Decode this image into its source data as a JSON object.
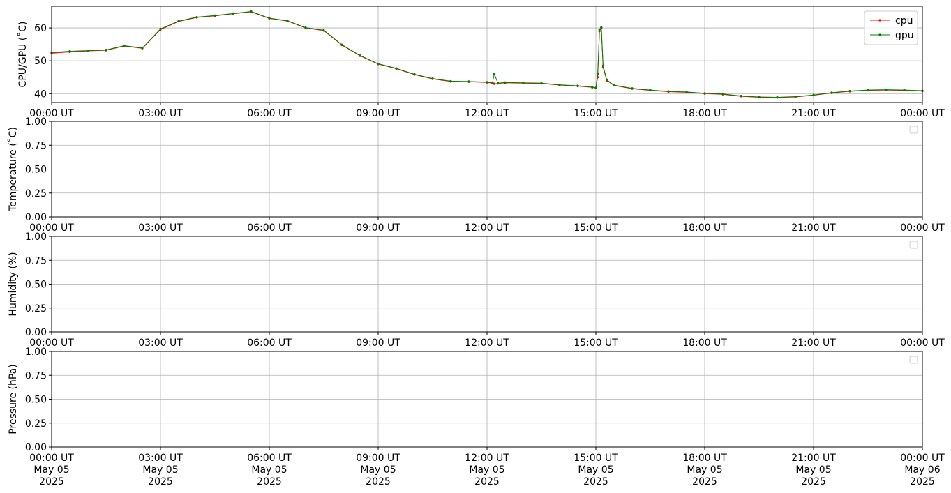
{
  "chart_data": [
    {
      "type": "line",
      "ylabel": "CPU/GPU (˚C)",
      "xlim": [
        "2025-05-05T00:00:00Z",
        "2025-05-06T00:00:00Z"
      ],
      "ylim": [
        37.3,
        66.6
      ],
      "yticks": [
        "40",
        "50",
        "60"
      ],
      "xtick_labels": [
        "00:00 UT",
        "03:00 UT",
        "06:00 UT",
        "09:00 UT",
        "12:00 UT",
        "15:00 UT",
        "18:00 UT",
        "21:00 UT",
        "00:00 UT"
      ],
      "grid": true,
      "legend_position": "top-right",
      "colors": {
        "cpu": "#ff0000",
        "gpu": "#008000"
      },
      "series": [
        {
          "name": "cpu",
          "x": [
            0,
            0.5,
            1.0,
            1.5,
            2.0,
            2.5,
            3.0,
            3.5,
            4.0,
            4.5,
            5.0,
            5.5,
            6.0,
            6.5,
            7.0,
            7.5,
            8.0,
            8.5,
            9.0,
            9.5,
            10.0,
            10.5,
            11.0,
            11.5,
            12.0,
            12.15,
            12.2,
            12.3,
            12.5,
            13.0,
            13.5,
            14.0,
            14.5,
            14.9,
            15.0,
            15.05,
            15.1,
            15.15,
            15.2,
            15.3,
            15.5,
            16.0,
            16.5,
            17.0,
            17.5,
            18.0,
            18.5,
            19.0,
            19.5,
            20.0,
            20.5,
            21.0,
            21.5,
            22.0,
            22.5,
            23.0,
            23.5,
            24.0
          ],
          "y": [
            52.3,
            52.7,
            53.0,
            53.2,
            54.5,
            53.8,
            59.5,
            62.0,
            63.2,
            63.7,
            64.3,
            64.9,
            62.9,
            62.1,
            60.0,
            59.2,
            54.8,
            51.5,
            49.0,
            47.6,
            45.8,
            44.5,
            43.7,
            43.6,
            43.4,
            43.2,
            43.0,
            43.1,
            43.3,
            43.2,
            43.1,
            42.6,
            42.3,
            41.9,
            41.7,
            45.0,
            59.0,
            60.0,
            48.0,
            44.0,
            42.5,
            41.5,
            41.0,
            40.6,
            40.4,
            40.0,
            39.8,
            39.2,
            38.9,
            38.8,
            39.0,
            39.5,
            40.2,
            40.7,
            41.0,
            41.1,
            41.0,
            40.8
          ]
        },
        {
          "name": "gpu",
          "x": [
            0,
            0.5,
            1.0,
            1.5,
            2.0,
            2.5,
            3.0,
            3.5,
            4.0,
            4.5,
            5.0,
            5.5,
            6.0,
            6.5,
            7.0,
            7.5,
            8.0,
            8.5,
            9.0,
            9.5,
            10.0,
            10.5,
            11.0,
            11.5,
            12.0,
            12.15,
            12.2,
            12.3,
            12.5,
            13.0,
            13.5,
            14.0,
            14.5,
            14.9,
            15.0,
            15.05,
            15.1,
            15.15,
            15.2,
            15.3,
            15.5,
            16.0,
            16.5,
            17.0,
            17.5,
            18.0,
            18.5,
            19.0,
            19.5,
            20.0,
            20.5,
            21.0,
            21.5,
            22.0,
            22.5,
            23.0,
            23.5,
            24.0
          ],
          "y": [
            52.5,
            52.9,
            53.1,
            53.3,
            54.6,
            53.9,
            59.7,
            62.1,
            63.3,
            63.8,
            64.4,
            65.0,
            63.0,
            62.2,
            60.1,
            59.3,
            54.9,
            51.6,
            49.1,
            47.7,
            45.9,
            44.6,
            43.8,
            43.7,
            43.5,
            43.3,
            46.0,
            43.2,
            43.4,
            43.3,
            43.2,
            42.7,
            42.4,
            42.0,
            41.8,
            46.0,
            59.5,
            60.2,
            48.5,
            44.2,
            42.6,
            41.6,
            41.1,
            40.7,
            40.5,
            40.1,
            39.9,
            39.3,
            39.0,
            38.9,
            39.1,
            39.6,
            40.3,
            40.8,
            41.1,
            41.2,
            41.1,
            40.9
          ]
        }
      ]
    },
    {
      "type": "line",
      "ylabel": "Temperature (˚C)",
      "xlim": [
        "2025-05-05T00:00:00Z",
        "2025-05-06T00:00:00Z"
      ],
      "ylim": [
        0,
        1
      ],
      "yticks": [
        "0.00",
        "0.25",
        "0.50",
        "0.75",
        "1.00"
      ],
      "xtick_labels": [
        "00:00 UT",
        "03:00 UT",
        "06:00 UT",
        "09:00 UT",
        "12:00 UT",
        "15:00 UT",
        "18:00 UT",
        "21:00 UT",
        "00:00 UT"
      ],
      "grid": true,
      "legend_position": "top-right",
      "series": []
    },
    {
      "type": "line",
      "ylabel": "Humidity (%)",
      "xlim": [
        "2025-05-05T00:00:00Z",
        "2025-05-06T00:00:00Z"
      ],
      "ylim": [
        0,
        1
      ],
      "yticks": [
        "0.00",
        "0.25",
        "0.50",
        "0.75",
        "1.00"
      ],
      "xtick_labels": [
        "00:00 UT",
        "03:00 UT",
        "06:00 UT",
        "09:00 UT",
        "12:00 UT",
        "15:00 UT",
        "18:00 UT",
        "21:00 UT",
        "00:00 UT"
      ],
      "grid": true,
      "legend_position": "top-right",
      "series": []
    },
    {
      "type": "line",
      "ylabel": "Pressure (hPa)",
      "xlim": [
        "2025-05-05T00:00:00Z",
        "2025-05-06T00:00:00Z"
      ],
      "ylim": [
        0,
        1
      ],
      "yticks": [
        "0.00",
        "0.25",
        "0.50",
        "0.75",
        "1.00"
      ],
      "xtick_labels": [
        [
          "00:00 UT",
          "May 05",
          "2025"
        ],
        [
          "03:00 UT",
          "May 05",
          "2025"
        ],
        [
          "06:00 UT",
          "May 05",
          "2025"
        ],
        [
          "09:00 UT",
          "May 05",
          "2025"
        ],
        [
          "12:00 UT",
          "May 05",
          "2025"
        ],
        [
          "15:00 UT",
          "May 05",
          "2025"
        ],
        [
          "18:00 UT",
          "May 05",
          "2025"
        ],
        [
          "21:00 UT",
          "May 05",
          "2025"
        ],
        [
          "00:00 UT",
          "May 06",
          "2025"
        ]
      ],
      "grid": true,
      "legend_position": "top-right",
      "series": []
    }
  ]
}
